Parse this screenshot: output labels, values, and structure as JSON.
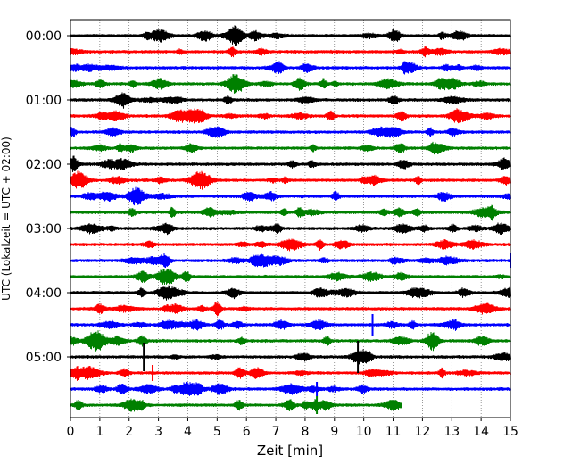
{
  "chart_data": {
    "type": "line",
    "subtype": "helicorder",
    "xlabel": "Zeit  [min]",
    "ylabel": "UTC (Lokalzeit = UTC + 02:00)",
    "xlim": [
      0,
      15
    ],
    "x_ticks": [
      "0",
      "1",
      "2",
      "3",
      "4",
      "5",
      "6",
      "7",
      "8",
      "9",
      "10",
      "11",
      "12",
      "13",
      "14",
      "15"
    ],
    "y_tick_labels": [
      "00:00",
      "01:00",
      "02:00",
      "03:00",
      "04:00",
      "05:00"
    ],
    "grid": "vertical dotted lines at each minute",
    "row_minutes": 15,
    "trace_colors": [
      "#000000",
      "#ff0000",
      "#0000ff",
      "#008000"
    ],
    "rows": [
      {
        "start": "00:00",
        "color": "#000000",
        "end_min": 15
      },
      {
        "start": "00:15",
        "color": "#ff0000",
        "end_min": 15
      },
      {
        "start": "00:30",
        "color": "#0000ff",
        "end_min": 15
      },
      {
        "start": "00:45",
        "color": "#008000",
        "end_min": 15
      },
      {
        "start": "01:00",
        "color": "#000000",
        "end_min": 15
      },
      {
        "start": "01:15",
        "color": "#ff0000",
        "end_min": 15
      },
      {
        "start": "01:30",
        "color": "#0000ff",
        "end_min": 15
      },
      {
        "start": "01:45",
        "color": "#008000",
        "end_min": 15
      },
      {
        "start": "02:00",
        "color": "#000000",
        "end_min": 15
      },
      {
        "start": "02:15",
        "color": "#ff0000",
        "end_min": 15
      },
      {
        "start": "02:30",
        "color": "#0000ff",
        "end_min": 15
      },
      {
        "start": "02:45",
        "color": "#008000",
        "end_min": 15
      },
      {
        "start": "03:00",
        "color": "#000000",
        "end_min": 15
      },
      {
        "start": "03:15",
        "color": "#ff0000",
        "end_min": 15
      },
      {
        "start": "03:30",
        "color": "#0000ff",
        "end_min": 15
      },
      {
        "start": "03:45",
        "color": "#008000",
        "end_min": 15
      },
      {
        "start": "04:00",
        "color": "#000000",
        "end_min": 15
      },
      {
        "start": "04:15",
        "color": "#ff0000",
        "end_min": 15
      },
      {
        "start": "04:30",
        "color": "#0000ff",
        "end_min": 15
      },
      {
        "start": "04:45",
        "color": "#008000",
        "end_min": 15
      },
      {
        "start": "05:00",
        "color": "#000000",
        "end_min": 15
      },
      {
        "start": "05:15",
        "color": "#ff0000",
        "end_min": 15
      },
      {
        "start": "05:30",
        "color": "#0000ff",
        "end_min": 15
      },
      {
        "start": "05:45",
        "color": "#008000",
        "end_min": 11.3
      }
    ]
  }
}
